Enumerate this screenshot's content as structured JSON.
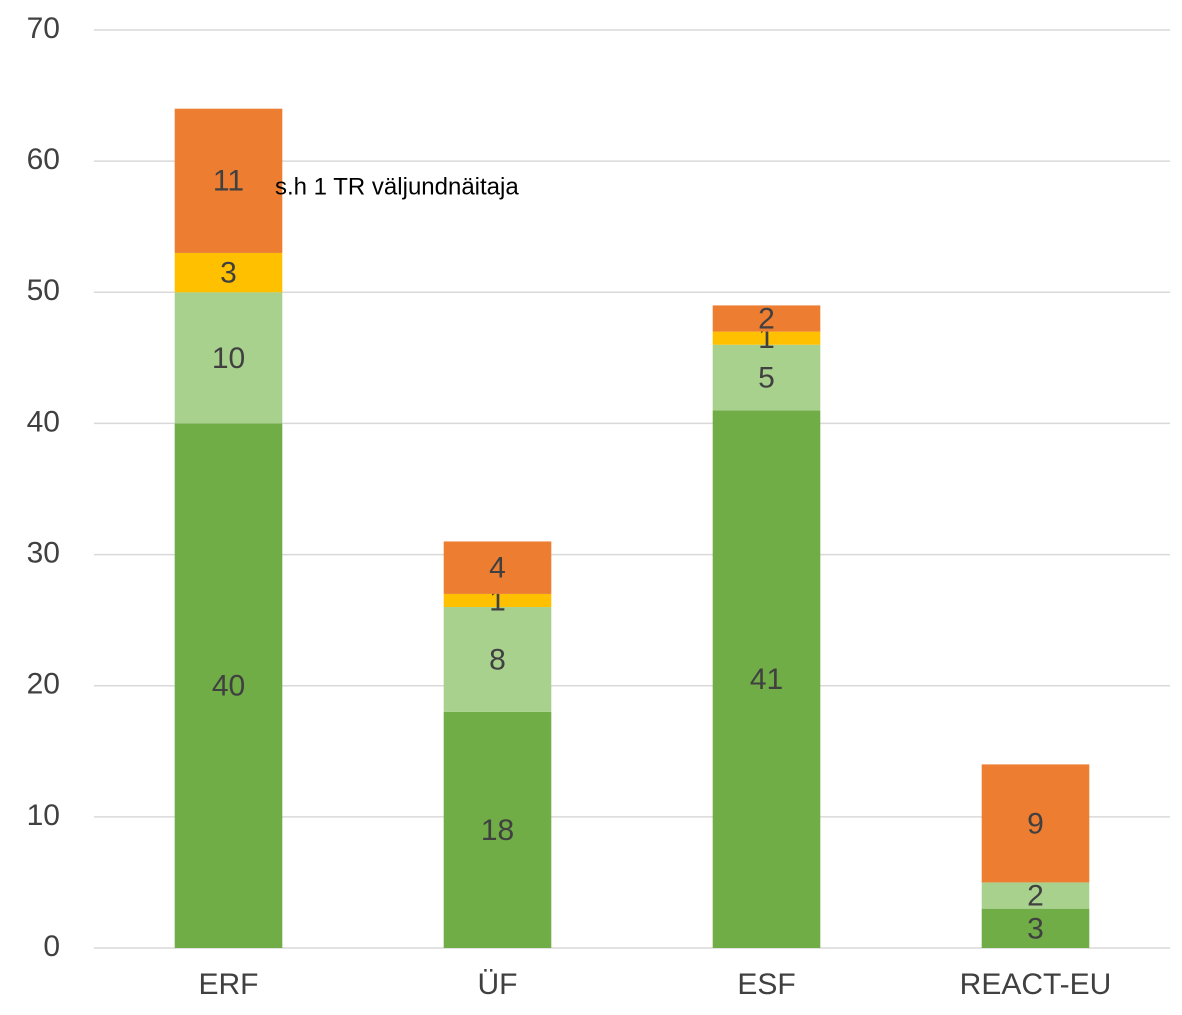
{
  "chart_data": {
    "type": "stacked_bar",
    "categories": [
      "ERF",
      "ÜF",
      "ESF",
      "REACT-EU"
    ],
    "series": [
      {
        "color": "#70ad47",
        "values": [
          40,
          18,
          41,
          3
        ]
      },
      {
        "color": "#a9d18e",
        "values": [
          10,
          8,
          5,
          2
        ]
      },
      {
        "color": "#ffc000",
        "values": [
          3,
          1,
          1,
          null
        ]
      },
      {
        "color": "#ed7d31",
        "values": [
          11,
          4,
          2,
          9
        ]
      }
    ],
    "annotation": "s.h 1 TR väljundnäitaja",
    "ylim": [
      0,
      70
    ],
    "yticks": [
      0,
      10,
      20,
      30,
      40,
      50,
      60,
      70
    ],
    "grid": true
  }
}
